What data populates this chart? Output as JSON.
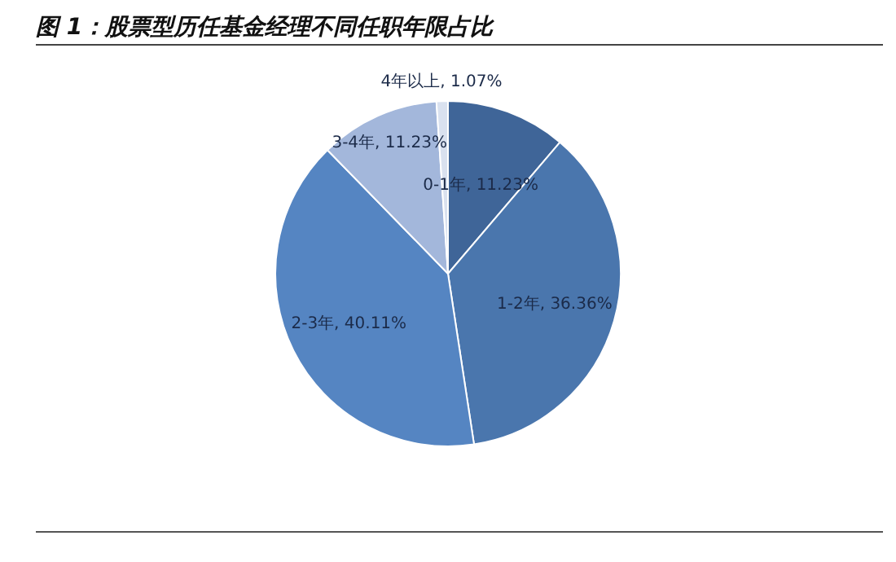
{
  "chart_data": {
    "type": "pie",
    "title": "图 1：股票型历任基金经理不同任职年限占比",
    "categories": [
      "0-1年",
      "1-2年",
      "2-3年",
      "3-4年",
      "4年以上"
    ],
    "values": [
      11.23,
      36.36,
      40.11,
      11.23,
      1.07
    ],
    "colors": [
      "#3f6598",
      "#4a76ad",
      "#5585c2",
      "#a3b7db",
      "#d9e1ef"
    ],
    "value_labels": [
      "11.23%",
      "36.36%",
      "40.11%",
      "11.23%",
      "1.07%"
    ]
  }
}
